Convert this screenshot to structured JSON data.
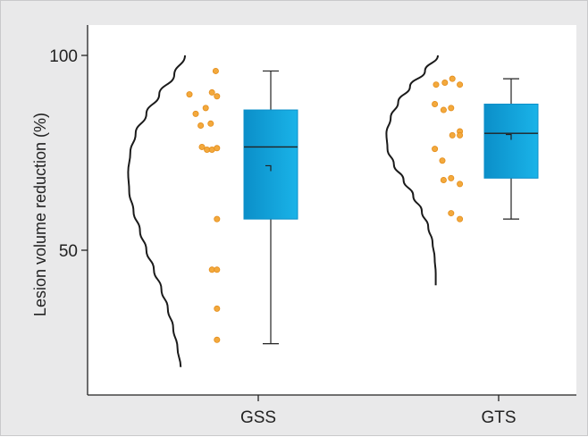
{
  "chart_data": {
    "type": "box_with_points_and_density",
    "title": "",
    "xlabel": "",
    "ylabel": "Lesion volume reduction (%)",
    "categories": [
      "GSS",
      "GTS"
    ],
    "ylim": [
      16,
      107
    ],
    "yticks": [
      50,
      100
    ],
    "grid": false,
    "colors": {
      "point": "#f3a93d",
      "point_edge": "#e48d1a",
      "box_fill": "#1ab3e8",
      "box_fill_dark": "#0b8fc9",
      "curve": "#1a1a1a",
      "plot_background": "#ffffff",
      "figure_background": "#e9e9ea"
    },
    "groups": [
      {
        "name": "GSS",
        "box": {
          "whisker_low": 26,
          "q1": 58,
          "median": 76.5,
          "q3": 86,
          "whisker_high": 96,
          "mean": 71
        },
        "points": [
          {
            "x": -3.0,
            "y": 90
          },
          {
            "x": -2.5,
            "y": 85
          },
          {
            "x": -2.1,
            "y": 82
          },
          {
            "x": -1.7,
            "y": 86.5
          },
          {
            "x": -1.2,
            "y": 90.5
          },
          {
            "x": -0.8,
            "y": 89.5
          },
          {
            "x": -0.9,
            "y": 96
          },
          {
            "x": -1.3,
            "y": 82.5
          },
          {
            "x": -2.0,
            "y": 76.5
          },
          {
            "x": -1.6,
            "y": 75.8
          },
          {
            "x": -1.2,
            "y": 75.8
          },
          {
            "x": -0.8,
            "y": 76.2
          },
          {
            "x": -0.8,
            "y": 58
          },
          {
            "x": -1.2,
            "y": 45
          },
          {
            "x": -0.8,
            "y": 45
          },
          {
            "x": -0.8,
            "y": 35
          },
          {
            "x": -0.8,
            "y": 27
          }
        ],
        "density": [
          {
            "y": 100,
            "w": 0.0
          },
          {
            "y": 95,
            "w": 0.5
          },
          {
            "y": 90,
            "w": 1.2
          },
          {
            "y": 85,
            "w": 1.8
          },
          {
            "y": 80,
            "w": 2.3
          },
          {
            "y": 75,
            "w": 2.55
          },
          {
            "y": 70,
            "w": 2.65
          },
          {
            "y": 65,
            "w": 2.6
          },
          {
            "y": 60,
            "w": 2.4
          },
          {
            "y": 55,
            "w": 2.1
          },
          {
            "y": 50,
            "w": 1.8
          },
          {
            "y": 45,
            "w": 1.45
          },
          {
            "y": 40,
            "w": 1.1
          },
          {
            "y": 35,
            "w": 0.8
          },
          {
            "y": 30,
            "w": 0.55
          },
          {
            "y": 25,
            "w": 0.35
          },
          {
            "y": 20,
            "w": 0.2
          }
        ]
      },
      {
        "name": "GTS",
        "box": {
          "whisker_low": 58,
          "q1": 68.5,
          "median": 80,
          "q3": 87.5,
          "whisker_high": 94,
          "mean": 79
        },
        "points": [
          {
            "x": -2.5,
            "y": 92.5
          },
          {
            "x": -1.8,
            "y": 93
          },
          {
            "x": -1.2,
            "y": 94
          },
          {
            "x": -0.6,
            "y": 92.5
          },
          {
            "x": -2.6,
            "y": 87.5
          },
          {
            "x": -1.9,
            "y": 86
          },
          {
            "x": -1.3,
            "y": 86.5
          },
          {
            "x": -0.6,
            "y": 80.5
          },
          {
            "x": -1.2,
            "y": 79.5
          },
          {
            "x": -0.6,
            "y": 79.5
          },
          {
            "x": -2.6,
            "y": 76
          },
          {
            "x": -2.0,
            "y": 73
          },
          {
            "x": -1.9,
            "y": 68
          },
          {
            "x": -1.3,
            "y": 68.5
          },
          {
            "x": -0.6,
            "y": 67
          },
          {
            "x": -1.3,
            "y": 59.5
          },
          {
            "x": -0.6,
            "y": 58
          }
        ],
        "density": [
          {
            "y": 100,
            "w": 0.0
          },
          {
            "y": 96,
            "w": 0.6
          },
          {
            "y": 92,
            "w": 1.3
          },
          {
            "y": 88,
            "w": 1.85
          },
          {
            "y": 84,
            "w": 2.2
          },
          {
            "y": 80,
            "w": 2.4
          },
          {
            "y": 76,
            "w": 2.35
          },
          {
            "y": 72,
            "w": 2.05
          },
          {
            "y": 68,
            "w": 1.6
          },
          {
            "y": 64,
            "w": 1.15
          },
          {
            "y": 60,
            "w": 0.75
          },
          {
            "y": 56,
            "w": 0.45
          },
          {
            "y": 52,
            "w": 0.25
          },
          {
            "y": 48,
            "w": 0.15
          },
          {
            "y": 44,
            "w": 0.1
          },
          {
            "y": 41,
            "w": 0.1
          }
        ]
      }
    ]
  }
}
